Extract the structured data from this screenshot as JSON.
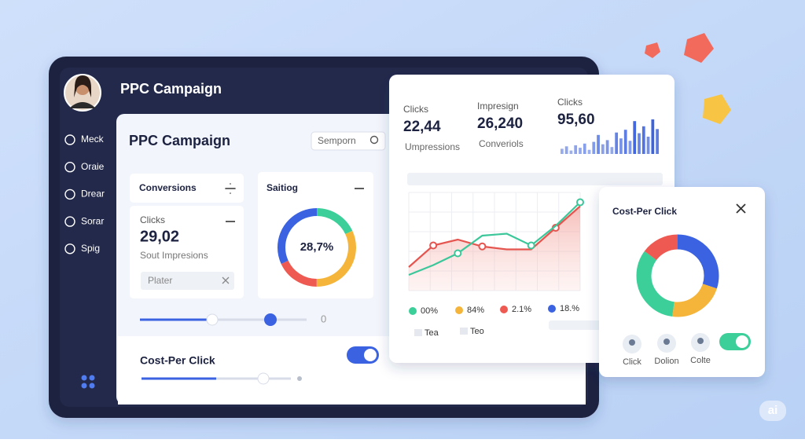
{
  "sidebar": {
    "title": "PPC Campaign",
    "nav": [
      "Meck",
      "Oraie",
      "Drear",
      "Sorar",
      "Spig"
    ]
  },
  "main": {
    "title": "PPC Campaign",
    "search": "Semporn",
    "conversions": "Conversions",
    "clicks_card": {
      "label": "Clicks",
      "value": "29,02",
      "sub": "Sout Impresions",
      "input": "Plater"
    },
    "saitiog": {
      "title": "Saitiog",
      "donut_label": "28,7%",
      "segments": [
        {
          "color": "#3ccf9a",
          "value": 18
        },
        {
          "color": "#f5b53b",
          "value": 32
        },
        {
          "color": "#ee5a52",
          "value": 18
        },
        {
          "color": "#3b62e0",
          "value": 32
        }
      ]
    },
    "slider_end": "0",
    "cost_per_click": "Cost-Per Click"
  },
  "analytics": {
    "stats": [
      {
        "label": "Clicks",
        "value": "22,44",
        "sub": "Umpressions"
      },
      {
        "label": "Impresign",
        "value": "26,240",
        "sub": "Converiols"
      },
      {
        "label": "Clicks",
        "value": "95,60"
      }
    ],
    "bar_color": "#3d63dd",
    "bar_ylim": [
      0,
      100
    ],
    "bars": [
      15,
      22,
      10,
      25,
      18,
      30,
      12,
      35,
      55,
      28,
      40,
      20,
      62,
      45,
      70,
      38,
      95,
      60,
      80,
      50,
      100,
      72
    ],
    "line_chart": {
      "ylim": [
        0,
        100
      ],
      "series": [
        {
          "color": "#e5554f",
          "values": [
            24,
            46,
            52,
            45,
            42,
            42,
            64,
            86
          ]
        },
        {
          "color": "#3cc79a",
          "values": [
            16,
            26,
            38,
            56,
            58,
            46,
            66,
            90
          ]
        }
      ]
    },
    "legend": [
      {
        "label": "00%",
        "color": "#3ccf9a"
      },
      {
        "label": "84%",
        "color": "#f5b53b"
      },
      {
        "label": "2.1%",
        "color": "#ee5a52"
      },
      {
        "label": "18.%",
        "color": "#3b62e0"
      }
    ],
    "footer": [
      "Tea",
      "Teo"
    ]
  },
  "cost_card": {
    "title": "Cost-Per Click",
    "segments": [
      {
        "color": "#3b62e0",
        "value": 30
      },
      {
        "color": "#f5b53b",
        "value": 22
      },
      {
        "color": "#3ccf9a",
        "value": 33
      },
      {
        "color": "#ee5a52",
        "value": 15
      }
    ],
    "actions": [
      "Click",
      "Dolion",
      "Colte"
    ]
  }
}
